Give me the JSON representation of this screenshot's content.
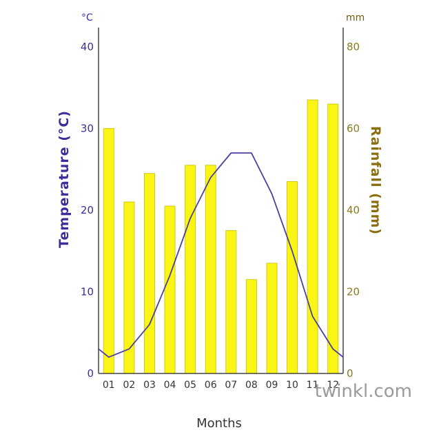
{
  "chart_data": {
    "type": "bar+line",
    "categories": [
      "01",
      "02",
      "03",
      "04",
      "05",
      "06",
      "07",
      "08",
      "09",
      "10",
      "11",
      "12"
    ],
    "rainfall_mm": [
      60,
      42,
      49,
      41,
      51,
      51,
      35,
      23,
      27,
      47,
      67,
      66
    ],
    "temperature_c": [
      2,
      3,
      6,
      12,
      19,
      24,
      27,
      27,
      22,
      15,
      7,
      3
    ],
    "xlabel": "Months",
    "ylabel_left": "Temperature (°C)",
    "ylabel_right": "Rainfall (mm)",
    "unit_left": "°C",
    "unit_right": "mm",
    "ylim_left": [
      0,
      40
    ],
    "ylim_right": [
      0,
      80
    ],
    "yticks_left": [
      "0",
      "10",
      "20",
      "30",
      "40"
    ],
    "yticks_right": [
      "0",
      "20",
      "40",
      "60",
      "80"
    ],
    "grid": false,
    "colors": {
      "bar": "#fbf516",
      "bar_edge": "#d2c81c",
      "line": "#4b3fa0",
      "axis": "#444444"
    }
  },
  "watermark": "twinkl.com"
}
